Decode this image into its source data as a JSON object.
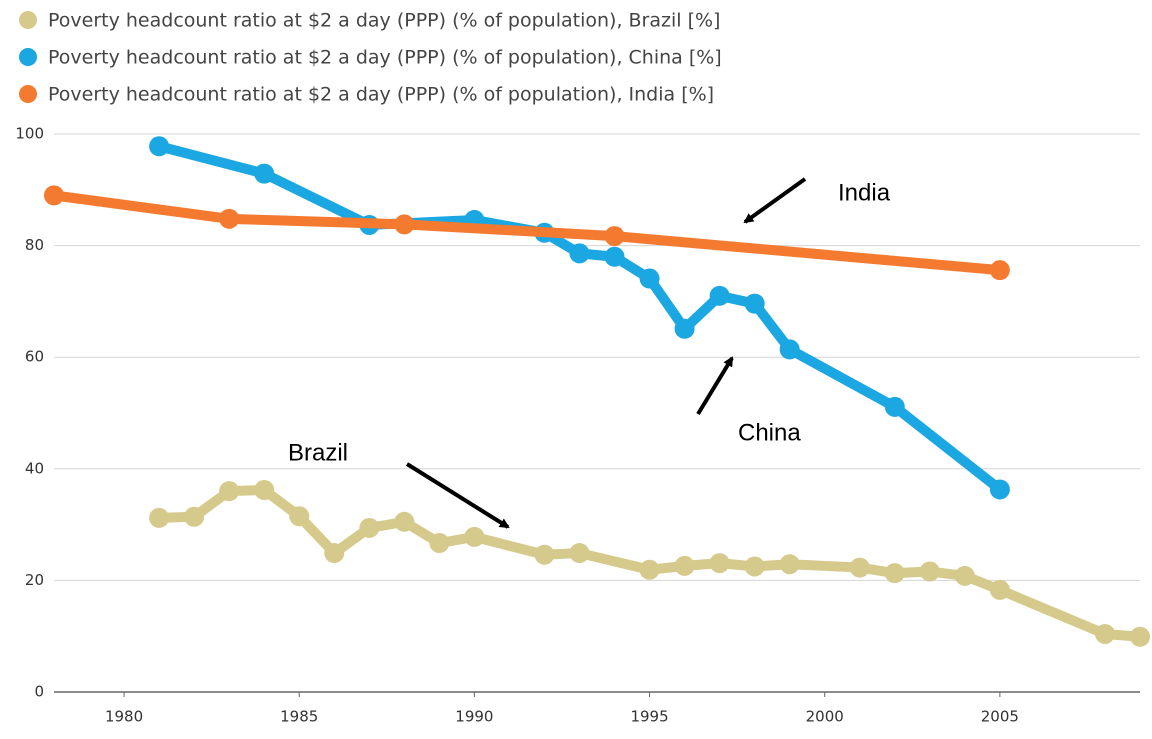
{
  "chart_data": {
    "type": "line",
    "xlim": [
      1978,
      2009
    ],
    "xticks": [
      1980,
      1985,
      1990,
      1995,
      2000,
      2005
    ],
    "ylim": [
      0,
      100
    ],
    "yticks": [
      0,
      20,
      40,
      60,
      80,
      100
    ],
    "grid": true,
    "series": [
      {
        "name": "Poverty headcount ratio at $2 a day (PPP) (% of population), Brazil [%]",
        "color": "#d5ca8c",
        "x": [
          1981,
          1982,
          1983,
          1984,
          1985,
          1986,
          1987,
          1988,
          1989,
          1990,
          1992,
          1993,
          1995,
          1996,
          1997,
          1998,
          1999,
          2001,
          2002,
          2003,
          2004,
          2005,
          2008,
          2009
        ],
        "values": [
          31.2,
          31.4,
          36.0,
          36.2,
          31.5,
          24.9,
          29.4,
          30.5,
          26.7,
          27.8,
          24.6,
          24.9,
          21.9,
          22.6,
          23.1,
          22.5,
          22.9,
          22.3,
          21.3,
          21.6,
          20.8,
          18.3,
          10.4,
          9.9
        ]
      },
      {
        "name": "Poverty headcount ratio at $2 a day (PPP) (% of population), China [%]",
        "color": "#1ba7e1",
        "x": [
          1981,
          1984,
          1987,
          1990,
          1992,
          1993,
          1994,
          1995,
          1996,
          1997,
          1998,
          1999,
          2002,
          2005
        ],
        "values": [
          97.8,
          92.9,
          83.7,
          84.6,
          82.3,
          78.6,
          78.0,
          74.1,
          65.1,
          71.0,
          69.6,
          61.4,
          51.1,
          36.3
        ]
      },
      {
        "name": "Poverty headcount ratio at $2 a day (PPP) (% of population), India [%]",
        "color": "#f47a30",
        "x": [
          1978,
          1983,
          1988,
          1994,
          2005
        ],
        "values": [
          89.0,
          84.8,
          83.8,
          81.7,
          75.6
        ]
      }
    ],
    "annotations": [
      "India",
      "China",
      "Brazil"
    ]
  }
}
